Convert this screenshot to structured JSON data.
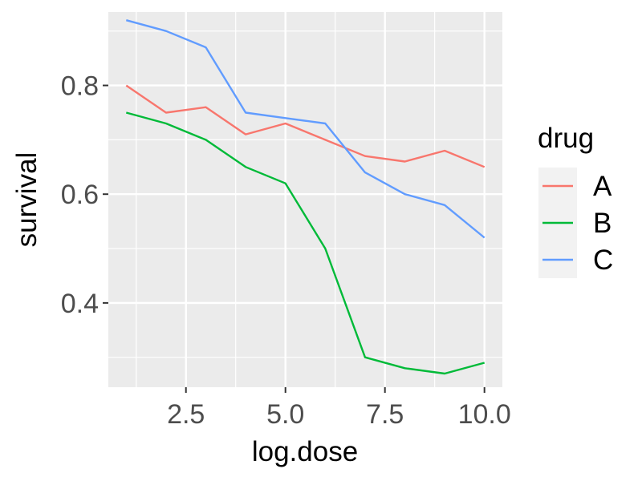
{
  "chart_data": {
    "type": "line",
    "xlabel": "log.dose",
    "ylabel": "survival",
    "xlim": [
      0.55,
      10.45
    ],
    "ylim": [
      0.245,
      0.935
    ],
    "x_ticks": [
      2.5,
      5.0,
      7.5,
      10.0
    ],
    "x_tick_labels": [
      "2.5",
      "5.0",
      "7.5",
      "10.0"
    ],
    "y_ticks": [
      0.4,
      0.6,
      0.8
    ],
    "y_tick_labels": [
      "0.4",
      "0.6",
      "0.8"
    ],
    "grid": true,
    "legend": {
      "title": "drug",
      "position": "right"
    },
    "x": [
      1,
      2,
      3,
      4,
      5,
      6,
      7,
      8,
      9,
      10
    ],
    "series": [
      {
        "name": "A",
        "color": "#F8766D",
        "values": [
          0.8,
          0.75,
          0.76,
          0.71,
          0.73,
          0.7,
          0.67,
          0.66,
          0.68,
          0.65
        ]
      },
      {
        "name": "B",
        "color": "#00BA38",
        "values": [
          0.75,
          0.73,
          0.7,
          0.65,
          0.62,
          0.5,
          0.3,
          0.28,
          0.27,
          0.29
        ]
      },
      {
        "name": "C",
        "color": "#619CFF",
        "values": [
          0.92,
          0.9,
          0.87,
          0.75,
          0.74,
          0.73,
          0.64,
          0.6,
          0.58,
          0.52
        ]
      }
    ]
  }
}
